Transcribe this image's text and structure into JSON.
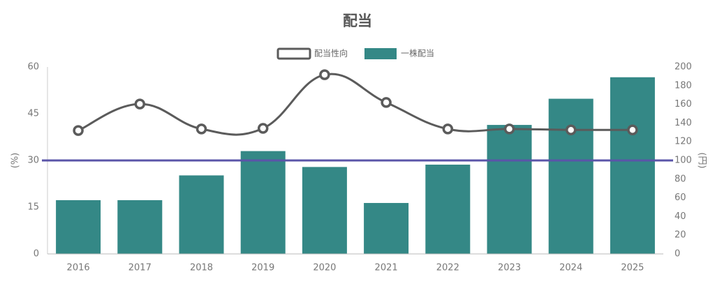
{
  "chart_data": {
    "type": "bar_line",
    "title": "配当",
    "categories": [
      "2016",
      "2017",
      "2018",
      "2019",
      "2020",
      "2021",
      "2022",
      "2023",
      "2024",
      "2025"
    ],
    "series": [
      {
        "name": "配当性向",
        "type": "line",
        "color": "#5b5b5b",
        "axis": "y",
        "values": [
          39.6,
          48.1,
          40.1,
          40.3,
          57.5,
          48.6,
          40.1,
          40.1,
          39.8,
          39.8
        ]
      },
      {
        "name": "一株配当",
        "type": "bar",
        "color": "#348886",
        "axis": "y2",
        "values": [
          57.5,
          57.5,
          84,
          110,
          93,
          54.5,
          95.5,
          138,
          166,
          189
        ]
      }
    ],
    "ylabel": "(%)",
    "y2label": "(円)",
    "ylim": [
      0,
      60
    ],
    "yticks": [
      0,
      15,
      30,
      45,
      60
    ],
    "y2lim": [
      0,
      200
    ],
    "y2ticks": [
      0,
      20,
      40,
      60,
      80,
      100,
      120,
      140,
      160,
      180,
      200
    ],
    "reference_line": {
      "value": 30,
      "color": "#5a55a8"
    }
  }
}
